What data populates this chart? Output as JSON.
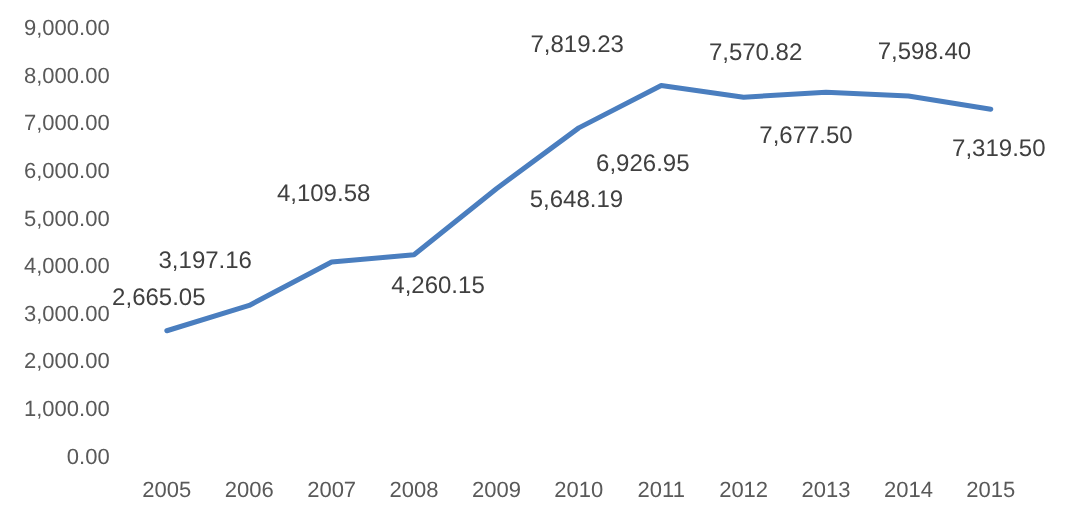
{
  "chart_data": {
    "type": "line",
    "categories": [
      "2005",
      "2006",
      "2007",
      "2008",
      "2009",
      "2010",
      "2011",
      "2012",
      "2013",
      "2014",
      "2015"
    ],
    "series": [
      {
        "color": "#4a7ebf",
        "values": [
          2665.05,
          3197.16,
          4109.58,
          4260.15,
          5648.19,
          6926.95,
          7819.23,
          7570.82,
          7677.5,
          7598.4,
          7319.5
        ],
        "value_labels": [
          "2,665.05",
          "3,197.16",
          "4,109.58",
          "4,260.15",
          "5,648.19",
          "6,926.95",
          "7,819.23",
          "7,570.82",
          "7,677.50",
          "7,598.40",
          "7,319.50"
        ]
      }
    ],
    "ylim": [
      0,
      9000
    ],
    "yticks": [
      {
        "value": 0,
        "label": "0.00"
      },
      {
        "value": 1000,
        "label": "1,000.00"
      },
      {
        "value": 2000,
        "label": "2,000.00"
      },
      {
        "value": 3000,
        "label": "3,000.00"
      },
      {
        "value": 4000,
        "label": "4,000.00"
      },
      {
        "value": 5000,
        "label": "5,000.00"
      },
      {
        "value": 6000,
        "label": "6,000.00"
      },
      {
        "value": 7000,
        "label": "7,000.00"
      },
      {
        "value": 8000,
        "label": "8,000.00"
      },
      {
        "value": 9000,
        "label": "9,000.00"
      }
    ],
    "grid": false,
    "legend": false,
    "marker": "none",
    "line_style": "solid"
  }
}
